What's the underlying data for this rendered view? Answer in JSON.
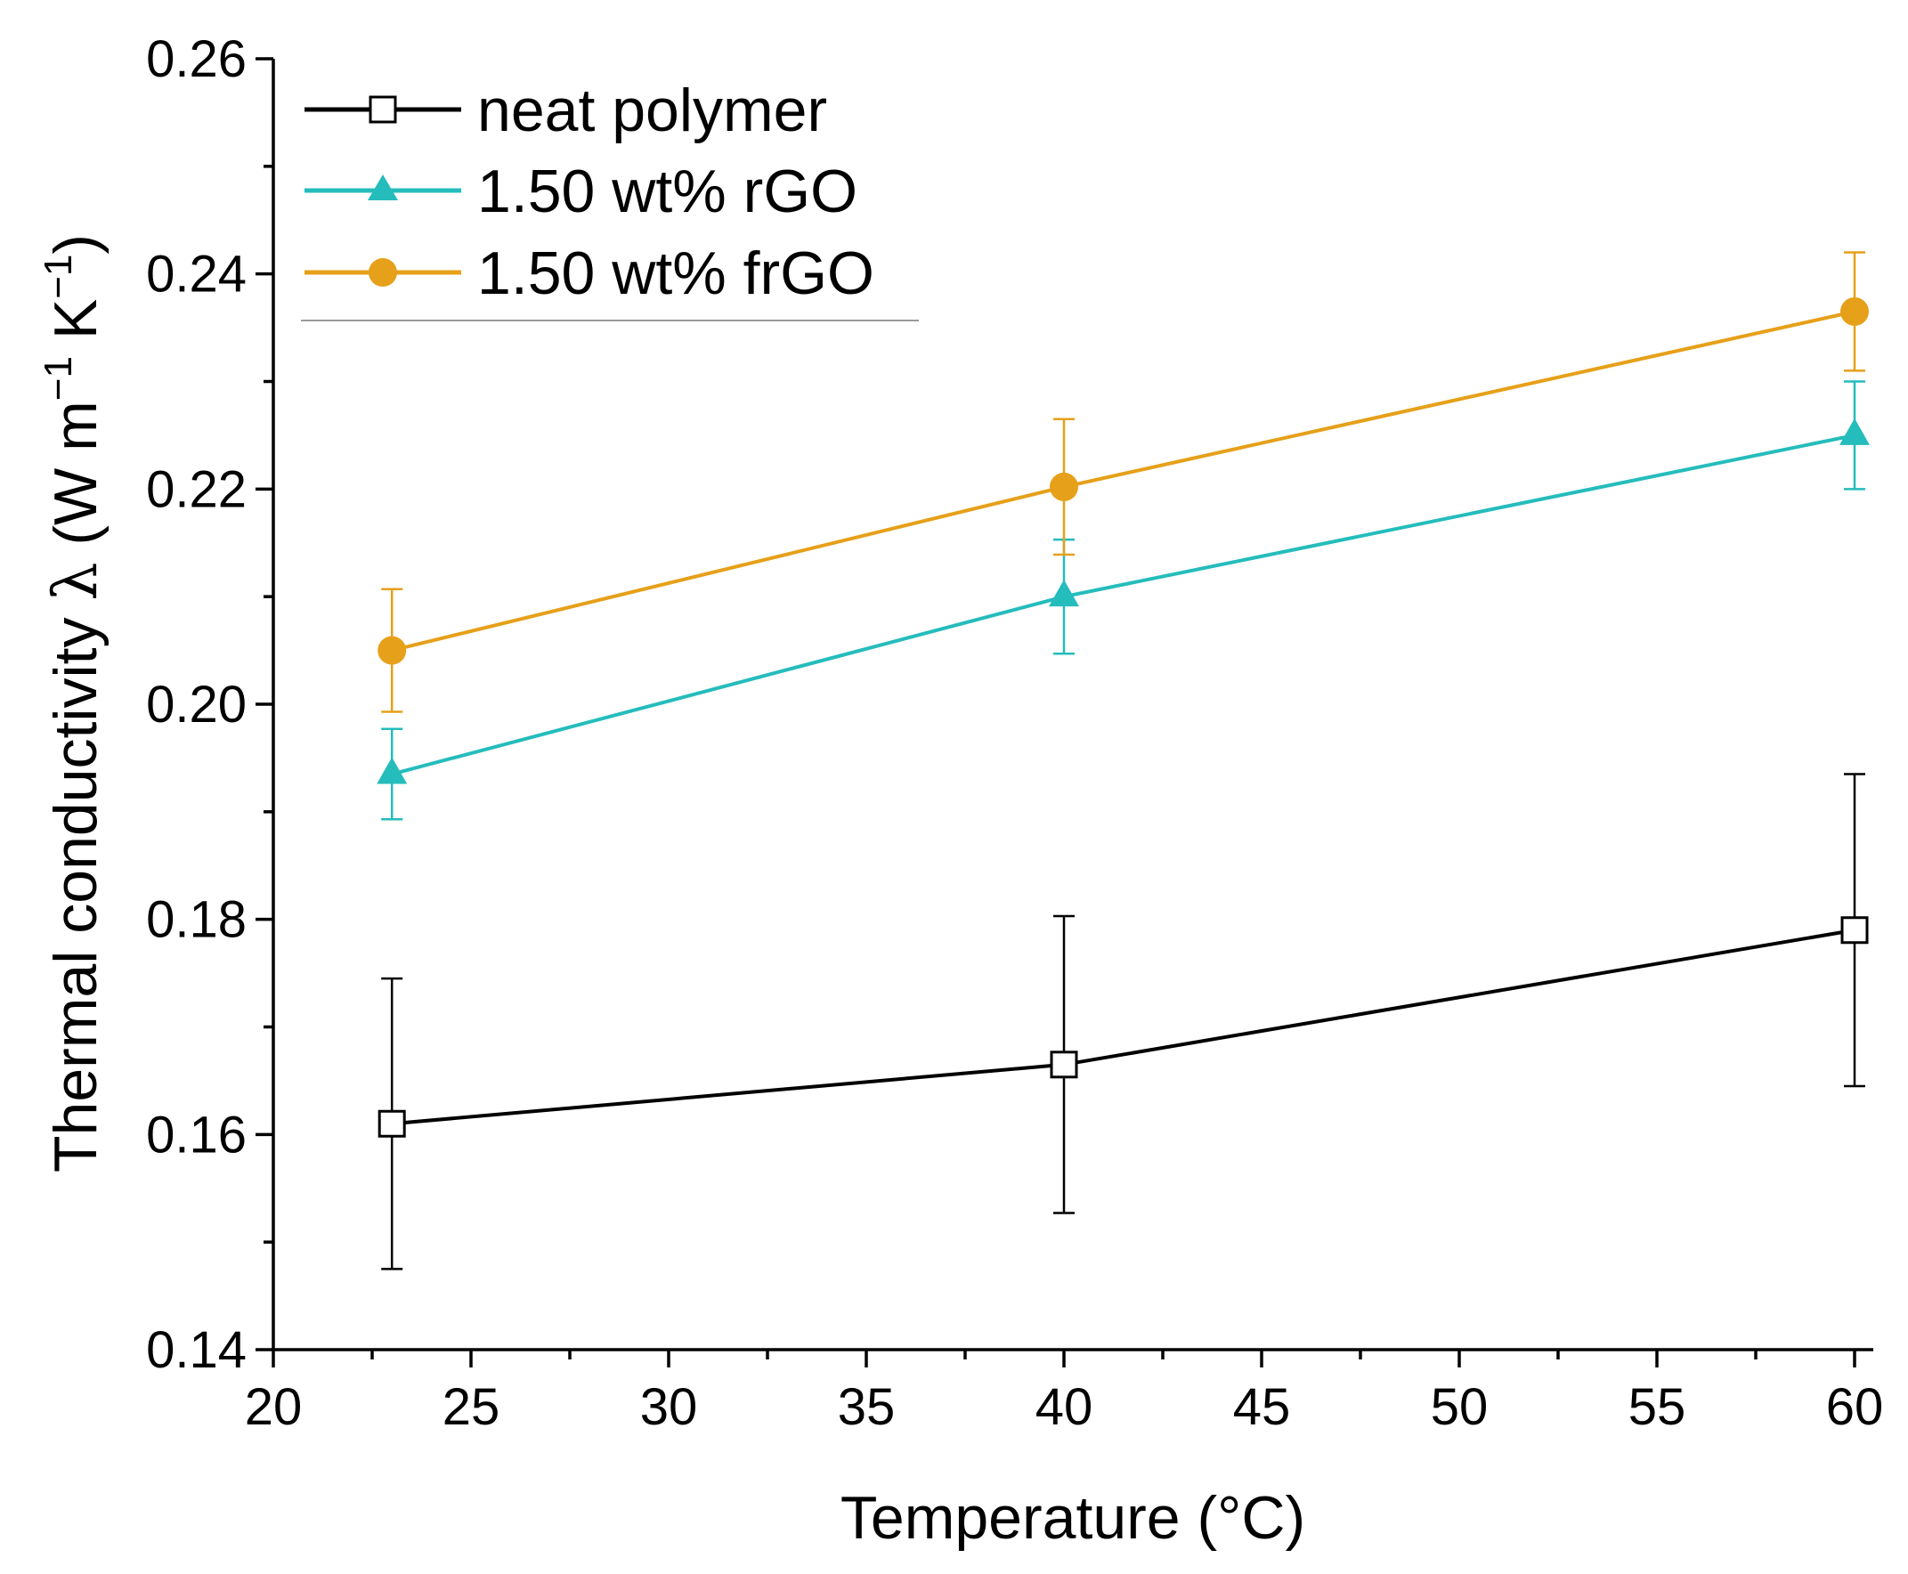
{
  "chart_data": {
    "type": "line",
    "title": "",
    "xlabel": "Temperature (°C)",
    "ylabel": {
      "prefix": "Thermal conductivity ",
      "symbol": "λ",
      "unit_open": " (W m",
      "exp1": "−1",
      "unit_mid": " K",
      "exp2": "−1",
      "unit_close": ")"
    },
    "xlim": [
      20,
      60
    ],
    "ylim": [
      0.14,
      0.26
    ],
    "xticks": [
      "20",
      "25",
      "30",
      "35",
      "40",
      "45",
      "50",
      "55",
      "60"
    ],
    "yticks": [
      "0.14",
      "0.16",
      "0.18",
      "0.20",
      "0.22",
      "0.24",
      "0.26"
    ],
    "legend_position": "top-left",
    "series": [
      {
        "name": "neat polymer",
        "color": "#000000",
        "marker": "open-square",
        "x": [
          23,
          40,
          60
        ],
        "y": [
          0.161,
          0.1665,
          0.179
        ],
        "err": [
          0.0135,
          0.0138,
          0.0145
        ]
      },
      {
        "name": "1.50 wt% rGO",
        "color": "#25bcbc",
        "marker": "filled-triangle",
        "x": [
          23,
          40,
          60
        ],
        "y": [
          0.1935,
          0.21,
          0.225
        ],
        "err": [
          0.0042,
          0.0053,
          0.005
        ]
      },
      {
        "name": "1.50 wt% frGO",
        "color": "#e6a019",
        "marker": "filled-circle",
        "x": [
          23,
          40,
          60
        ],
        "y": [
          0.205,
          0.2202,
          0.2365
        ],
        "err": [
          0.0057,
          0.0063,
          0.0055
        ]
      }
    ]
  }
}
